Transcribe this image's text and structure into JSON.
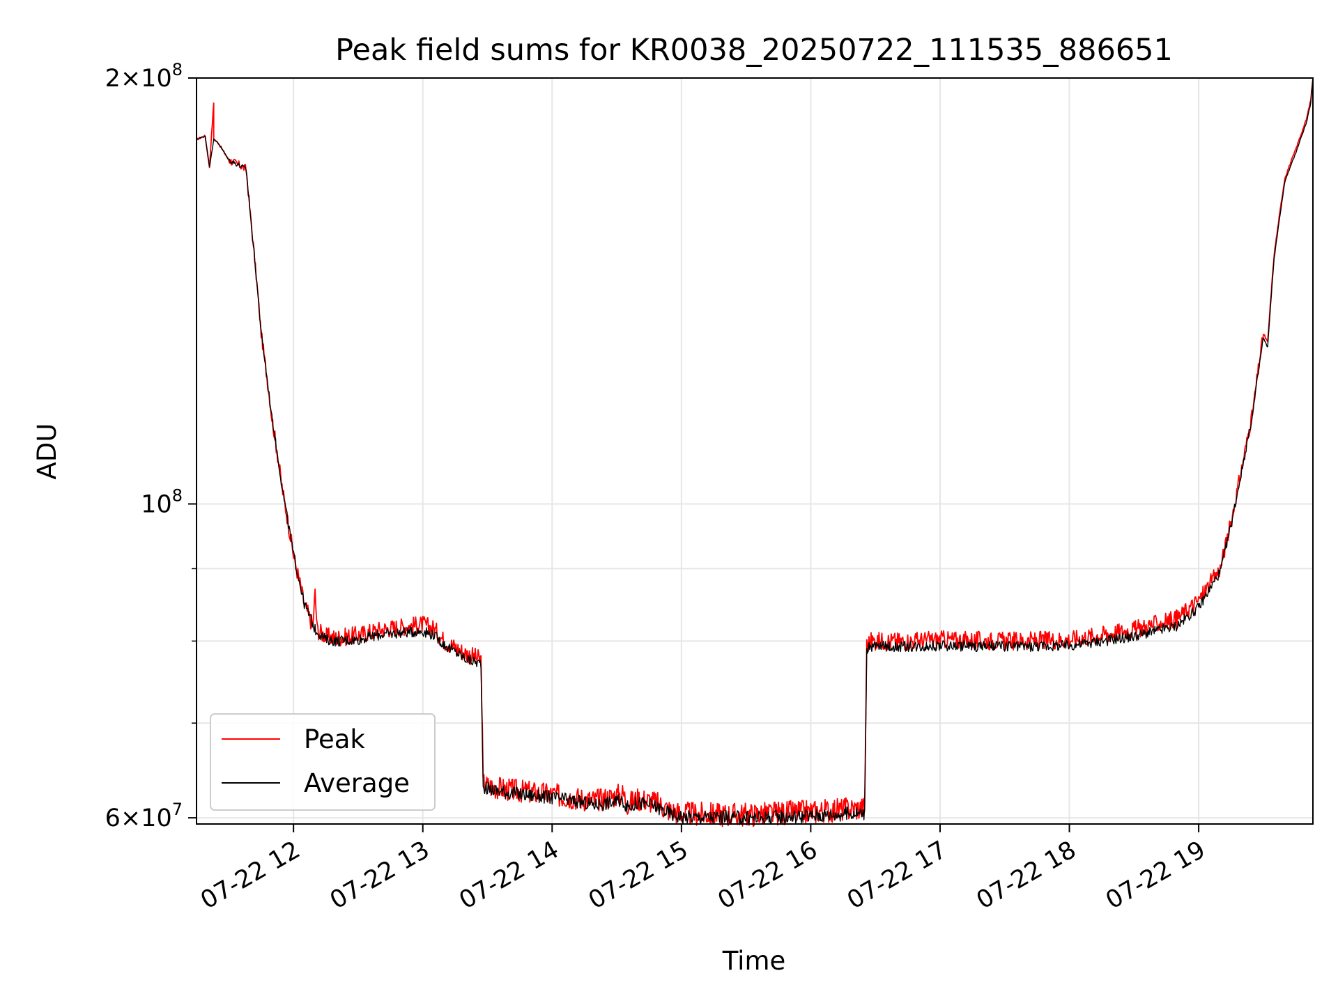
{
  "chart_data": {
    "type": "line",
    "title": "Peak field sums for KR0038_20250722_111535_886651",
    "xlabel": "Time",
    "ylabel": "ADU",
    "yscale": "log",
    "ylim": [
      59400000,
      200000000
    ],
    "xlim": [
      "07-22 11:15",
      "07-22 19:53"
    ],
    "grid": true,
    "legend_position": "lower-left",
    "x_ticks": [
      {
        "x": "07-22 12:00",
        "label": "07-22 12"
      },
      {
        "x": "07-22 13:00",
        "label": "07-22 13"
      },
      {
        "x": "07-22 14:00",
        "label": "07-22 14"
      },
      {
        "x": "07-22 15:00",
        "label": "07-22 15"
      },
      {
        "x": "07-22 16:00",
        "label": "07-22 16"
      },
      {
        "x": "07-22 17:00",
        "label": "07-22 17"
      },
      {
        "x": "07-22 18:00",
        "label": "07-22 18"
      },
      {
        "x": "07-22 19:00",
        "label": "07-22 19"
      }
    ],
    "y_ticks_major": [
      {
        "value": 60000000,
        "mantissa": "6",
        "base": "10",
        "exp": "7"
      },
      {
        "value": 100000000,
        "mantissa": "",
        "base": "10",
        "exp": "8"
      },
      {
        "value": 200000000,
        "mantissa": "2",
        "base": "10",
        "exp": "8"
      }
    ],
    "y_ticks_minor": [
      70000000,
      80000000,
      90000000
    ],
    "series": [
      {
        "name": "Peak",
        "color": "#ff0000",
        "noise": 1200000,
        "x": [
          "07-22 11:15",
          "07-22 11:17",
          "07-22 11:19",
          "07-22 11:21",
          "07-22 11:23",
          "07-22 11:23",
          "07-22 11:25",
          "07-22 11:30",
          "07-22 11:35",
          "07-22 11:38",
          "07-22 11:40",
          "07-22 11:45",
          "07-22 11:50",
          "07-22 11:55",
          "07-22 12:00",
          "07-22 12:05",
          "07-22 12:09",
          "07-22 12:10",
          "07-22 12:11",
          "07-22 12:15",
          "07-22 12:20",
          "07-22 12:30",
          "07-22 12:40",
          "07-22 12:50",
          "07-22 13:00",
          "07-22 13:05",
          "07-22 13:10",
          "07-22 13:20",
          "07-22 13:27",
          "07-22 13:28",
          "07-22 13:30",
          "07-22 13:40",
          "07-22 14:00",
          "07-22 14:20",
          "07-22 14:33",
          "07-22 14:35",
          "07-22 14:40",
          "07-22 14:47",
          "07-22 14:55",
          "07-22 15:00",
          "07-22 15:30",
          "07-22 16:00",
          "07-22 16:25",
          "07-22 16:26",
          "07-22 16:28",
          "07-22 16:45",
          "07-22 17:00",
          "07-22 17:30",
          "07-22 18:00",
          "07-22 18:30",
          "07-22 18:50",
          "07-22 19:00",
          "07-22 19:10",
          "07-22 19:15",
          "07-22 19:20",
          "07-22 19:25",
          "07-22 19:30",
          "07-22 19:32",
          "07-22 19:35",
          "07-22 19:40",
          "07-22 19:45",
          "07-22 19:50",
          "07-22 19:52",
          "07-22 19:53"
        ],
        "y": [
          181000000,
          181500000,
          182000000,
          173000000,
          192000000,
          181000000,
          180000000,
          175000000,
          173500000,
          172500000,
          160000000,
          132000000,
          115000000,
          102000000,
          92000000,
          85000000,
          82000000,
          86500000,
          81500000,
          80600000,
          80400000,
          80800000,
          81500000,
          81900000,
          82200000,
          81700000,
          80000000,
          78400000,
          77600000,
          63500000,
          63200000,
          62800000,
          62300000,
          61700000,
          62400000,
          61400000,
          61900000,
          61600000,
          60700000,
          60400000,
          60300000,
          60600000,
          61000000,
          79500000,
          80000000,
          80000000,
          80200000,
          80000000,
          80200000,
          81500000,
          83000000,
          85500000,
          90000000,
          97000000,
          106000000,
          116000000,
          132000000,
          130000000,
          150000000,
          170000000,
          178000000,
          187000000,
          193000000,
          200000000
        ]
      },
      {
        "name": "Average",
        "color": "#000000",
        "noise": 700000,
        "x": [
          "07-22 11:15",
          "07-22 11:17",
          "07-22 11:19",
          "07-22 11:21",
          "07-22 11:23",
          "07-22 11:25",
          "07-22 11:30",
          "07-22 11:35",
          "07-22 11:38",
          "07-22 11:40",
          "07-22 11:45",
          "07-22 11:50",
          "07-22 11:55",
          "07-22 12:00",
          "07-22 12:05",
          "07-22 12:10",
          "07-22 12:15",
          "07-22 12:20",
          "07-22 12:30",
          "07-22 12:40",
          "07-22 12:50",
          "07-22 13:00",
          "07-22 13:05",
          "07-22 13:10",
          "07-22 13:20",
          "07-22 13:27",
          "07-22 13:28",
          "07-22 13:30",
          "07-22 13:40",
          "07-22 14:00",
          "07-22 14:20",
          "07-22 14:33",
          "07-22 14:35",
          "07-22 14:40",
          "07-22 14:47",
          "07-22 14:55",
          "07-22 15:00",
          "07-22 15:30",
          "07-22 16:00",
          "07-22 16:25",
          "07-22 16:26",
          "07-22 16:28",
          "07-22 16:45",
          "07-22 17:00",
          "07-22 17:30",
          "07-22 18:00",
          "07-22 18:30",
          "07-22 18:50",
          "07-22 19:00",
          "07-22 19:10",
          "07-22 19:15",
          "07-22 19:20",
          "07-22 19:25",
          "07-22 19:30",
          "07-22 19:32",
          "07-22 19:35",
          "07-22 19:40",
          "07-22 19:45",
          "07-22 19:50",
          "07-22 19:52",
          "07-22 19:53"
        ],
        "y": [
          181000000,
          181500000,
          182000000,
          173000000,
          181000000,
          180000000,
          175000000,
          173500000,
          172500000,
          160000000,
          132000000,
          115000000,
          102000000,
          92000000,
          85000000,
          81500000,
          80200000,
          80000000,
          80200000,
          80800000,
          81100000,
          81300000,
          80800000,
          79500000,
          77700000,
          77100000,
          63200000,
          62900000,
          62500000,
          62000000,
          61300000,
          61700000,
          61000000,
          61500000,
          61200000,
          60400000,
          60100000,
          60000000,
          60200000,
          60500000,
          78900000,
          79300000,
          79300000,
          79400000,
          79300000,
          79400000,
          80600000,
          82000000,
          84500000,
          89500000,
          96500000,
          105500000,
          115500000,
          131000000,
          129000000,
          149000000,
          169000000,
          177000000,
          186000000,
          192000000,
          200000000
        ]
      }
    ]
  }
}
